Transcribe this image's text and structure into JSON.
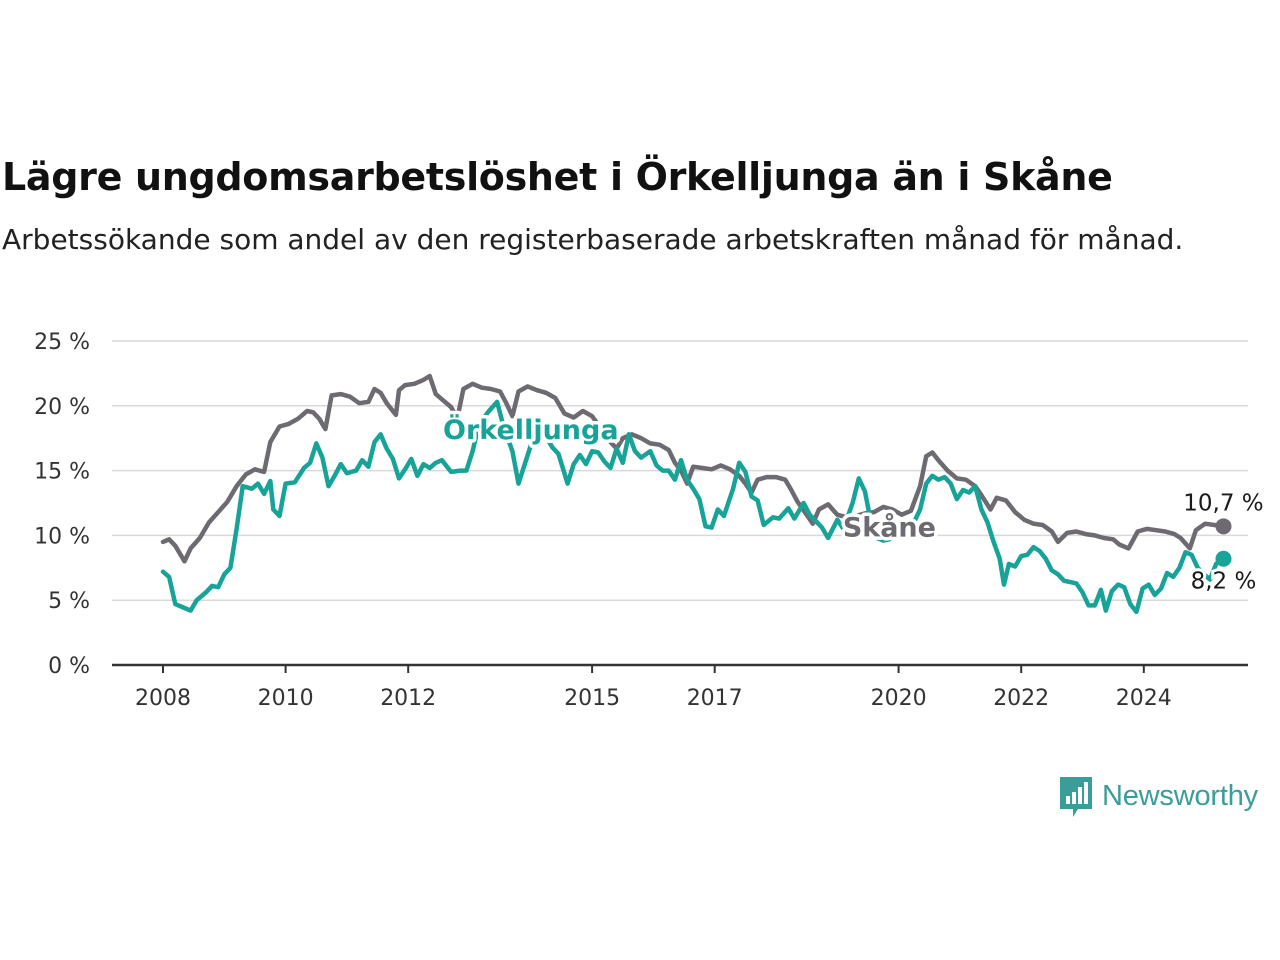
{
  "title": "Lägre ungdomsarbetslöshet i Örkelljunga än i Skåne",
  "subtitle": "Arbetssökande som andel av den registerbaserade arbetskraften månad för månad.",
  "brand": {
    "name": "Newsworthy",
    "icon": "newsworthy-logo-icon",
    "color": "#3a9d97"
  },
  "chart_data": {
    "type": "line",
    "title": "Lägre ungdomsarbetslöshet i Örkelljunga än i Skåne",
    "xlabel": "",
    "ylabel": "",
    "ylim": [
      0,
      25
    ],
    "yticks": [
      0,
      5,
      10,
      15,
      20,
      25
    ],
    "ytick_labels": [
      "0 %",
      "5 %",
      "10 %",
      "15 %",
      "20 %",
      "25 %"
    ],
    "xlim": [
      2008.0,
      2026.5
    ],
    "xticks": [
      2008,
      2010,
      2012,
      2015,
      2017,
      2020,
      2022,
      2024
    ],
    "xtick_labels": [
      "2008",
      "2010",
      "2012",
      "2015",
      "2017",
      "2020",
      "2022",
      "2024"
    ],
    "grid": true,
    "series": [
      {
        "name": "Skåne",
        "color": "#6d6b71",
        "end_label": "10,7 %",
        "points": [
          [
            2008.0,
            9.5
          ],
          [
            2008.1,
            9.7
          ],
          [
            2008.2,
            9.2
          ],
          [
            2008.35,
            8.0
          ],
          [
            2008.45,
            9.0
          ],
          [
            2008.6,
            9.8
          ],
          [
            2008.75,
            11.0
          ],
          [
            2008.9,
            11.8
          ],
          [
            2009.05,
            12.6
          ],
          [
            2009.2,
            13.8
          ],
          [
            2009.35,
            14.7
          ],
          [
            2009.5,
            15.1
          ],
          [
            2009.65,
            14.9
          ],
          [
            2009.75,
            17.2
          ],
          [
            2009.9,
            18.4
          ],
          [
            2010.05,
            18.6
          ],
          [
            2010.2,
            19.0
          ],
          [
            2010.35,
            19.6
          ],
          [
            2010.45,
            19.5
          ],
          [
            2010.55,
            19.0
          ],
          [
            2010.65,
            18.2
          ],
          [
            2010.75,
            20.8
          ],
          [
            2010.9,
            20.9
          ],
          [
            2011.05,
            20.7
          ],
          [
            2011.2,
            20.2
          ],
          [
            2011.35,
            20.3
          ],
          [
            2011.45,
            21.3
          ],
          [
            2011.55,
            21.0
          ],
          [
            2011.65,
            20.2
          ],
          [
            2011.8,
            19.3
          ],
          [
            2011.85,
            21.2
          ],
          [
            2011.95,
            21.6
          ],
          [
            2012.1,
            21.7
          ],
          [
            2012.25,
            22.0
          ],
          [
            2012.35,
            22.3
          ],
          [
            2012.45,
            20.9
          ],
          [
            2012.55,
            20.5
          ],
          [
            2012.7,
            19.9
          ],
          [
            2012.8,
            19.0
          ],
          [
            2012.9,
            21.3
          ],
          [
            2013.05,
            21.7
          ],
          [
            2013.2,
            21.4
          ],
          [
            2013.35,
            21.3
          ],
          [
            2013.5,
            21.1
          ],
          [
            2013.6,
            20.2
          ],
          [
            2013.7,
            19.2
          ],
          [
            2013.8,
            21.1
          ],
          [
            2013.95,
            21.5
          ],
          [
            2014.1,
            21.2
          ],
          [
            2014.25,
            21.0
          ],
          [
            2014.4,
            20.6
          ],
          [
            2014.55,
            19.4
          ],
          [
            2014.7,
            19.1
          ],
          [
            2014.85,
            19.6
          ],
          [
            2015.0,
            19.2
          ],
          [
            2015.15,
            18.2
          ],
          [
            2015.3,
            17.2
          ],
          [
            2015.4,
            16.7
          ],
          [
            2015.5,
            17.5
          ],
          [
            2015.65,
            17.8
          ],
          [
            2015.8,
            17.5
          ],
          [
            2015.95,
            17.1
          ],
          [
            2016.1,
            17.0
          ],
          [
            2016.25,
            16.6
          ],
          [
            2016.35,
            15.6
          ],
          [
            2016.45,
            15.0
          ],
          [
            2016.55,
            14.0
          ],
          [
            2016.65,
            15.3
          ],
          [
            2016.8,
            15.2
          ],
          [
            2016.95,
            15.1
          ],
          [
            2017.1,
            15.4
          ],
          [
            2017.25,
            15.1
          ],
          [
            2017.4,
            14.6
          ],
          [
            2017.5,
            14.0
          ],
          [
            2017.6,
            13.3
          ],
          [
            2017.7,
            14.3
          ],
          [
            2017.85,
            14.5
          ],
          [
            2018.0,
            14.5
          ],
          [
            2018.15,
            14.3
          ],
          [
            2018.25,
            13.5
          ],
          [
            2018.35,
            12.6
          ],
          [
            2018.5,
            11.6
          ],
          [
            2018.6,
            10.9
          ],
          [
            2018.7,
            12.0
          ],
          [
            2018.85,
            12.4
          ],
          [
            2019.0,
            11.6
          ],
          [
            2019.15,
            11.4
          ],
          [
            2019.3,
            11.5
          ],
          [
            2019.45,
            11.7
          ],
          [
            2019.6,
            11.8
          ],
          [
            2019.75,
            12.2
          ],
          [
            2019.9,
            12.0
          ],
          [
            2020.05,
            11.6
          ],
          [
            2020.2,
            11.9
          ],
          [
            2020.35,
            13.8
          ],
          [
            2020.45,
            16.1
          ],
          [
            2020.55,
            16.4
          ],
          [
            2020.65,
            15.8
          ],
          [
            2020.8,
            15.0
          ],
          [
            2020.95,
            14.4
          ],
          [
            2021.1,
            14.3
          ],
          [
            2021.25,
            13.8
          ],
          [
            2021.35,
            13.1
          ],
          [
            2021.5,
            12.0
          ],
          [
            2021.6,
            12.9
          ],
          [
            2021.75,
            12.7
          ],
          [
            2021.9,
            11.8
          ],
          [
            2022.05,
            11.2
          ],
          [
            2022.2,
            10.9
          ],
          [
            2022.35,
            10.8
          ],
          [
            2022.5,
            10.3
          ],
          [
            2022.6,
            9.5
          ],
          [
            2022.75,
            10.2
          ],
          [
            2022.9,
            10.3
          ],
          [
            2023.05,
            10.1
          ],
          [
            2023.2,
            10.0
          ],
          [
            2023.35,
            9.8
          ],
          [
            2023.5,
            9.7
          ],
          [
            2023.6,
            9.3
          ],
          [
            2023.75,
            9.0
          ],
          [
            2023.9,
            10.3
          ],
          [
            2024.05,
            10.5
          ],
          [
            2024.2,
            10.4
          ],
          [
            2024.35,
            10.3
          ],
          [
            2024.5,
            10.1
          ],
          [
            2024.6,
            9.8
          ],
          [
            2024.75,
            9.0
          ],
          [
            2024.85,
            10.4
          ],
          [
            2025.0,
            10.9
          ],
          [
            2025.15,
            10.8
          ],
          [
            2025.3,
            10.7
          ]
        ]
      },
      {
        "name": "Örkelljunga",
        "color": "#17a398",
        "end_label": "8,2 %",
        "points": [
          [
            2008.0,
            7.2
          ],
          [
            2008.1,
            6.8
          ],
          [
            2008.2,
            4.7
          ],
          [
            2008.35,
            4.4
          ],
          [
            2008.45,
            4.2
          ],
          [
            2008.55,
            5.0
          ],
          [
            2008.7,
            5.6
          ],
          [
            2008.8,
            6.1
          ],
          [
            2008.9,
            6.0
          ],
          [
            2009.0,
            7.0
          ],
          [
            2009.1,
            7.5
          ],
          [
            2009.2,
            10.5
          ],
          [
            2009.3,
            13.8
          ],
          [
            2009.45,
            13.6
          ],
          [
            2009.55,
            14.0
          ],
          [
            2009.65,
            13.2
          ],
          [
            2009.75,
            14.2
          ],
          [
            2009.8,
            12.0
          ],
          [
            2009.9,
            11.5
          ],
          [
            2010.0,
            14.0
          ],
          [
            2010.15,
            14.1
          ],
          [
            2010.3,
            15.2
          ],
          [
            2010.4,
            15.6
          ],
          [
            2010.5,
            17.1
          ],
          [
            2010.6,
            16.0
          ],
          [
            2010.7,
            13.8
          ],
          [
            2010.8,
            14.6
          ],
          [
            2010.9,
            15.5
          ],
          [
            2011.0,
            14.8
          ],
          [
            2011.15,
            15.0
          ],
          [
            2011.25,
            15.8
          ],
          [
            2011.35,
            15.3
          ],
          [
            2011.45,
            17.2
          ],
          [
            2011.55,
            17.8
          ],
          [
            2011.65,
            16.7
          ],
          [
            2011.75,
            15.9
          ],
          [
            2011.85,
            14.4
          ],
          [
            2011.95,
            15.1
          ],
          [
            2012.05,
            15.9
          ],
          [
            2012.15,
            14.6
          ],
          [
            2012.25,
            15.5
          ],
          [
            2012.35,
            15.2
          ],
          [
            2012.45,
            15.6
          ],
          [
            2012.55,
            15.8
          ],
          [
            2012.7,
            14.9
          ],
          [
            2012.85,
            15.0
          ],
          [
            2012.95,
            15.0
          ],
          [
            2013.05,
            16.5
          ],
          [
            2013.15,
            18.5
          ],
          [
            2013.3,
            19.5
          ],
          [
            2013.45,
            20.3
          ],
          [
            2013.55,
            18.5
          ],
          [
            2013.7,
            16.5
          ],
          [
            2013.8,
            14.0
          ],
          [
            2013.95,
            16.2
          ],
          [
            2014.1,
            18.4
          ],
          [
            2014.2,
            18.0
          ],
          [
            2014.35,
            16.8
          ],
          [
            2014.45,
            16.3
          ],
          [
            2014.6,
            14.0
          ],
          [
            2014.7,
            15.5
          ],
          [
            2014.8,
            16.2
          ],
          [
            2014.9,
            15.5
          ],
          [
            2015.0,
            16.5
          ],
          [
            2015.1,
            16.4
          ],
          [
            2015.2,
            15.7
          ],
          [
            2015.3,
            15.2
          ],
          [
            2015.4,
            16.7
          ],
          [
            2015.5,
            15.6
          ],
          [
            2015.6,
            17.8
          ],
          [
            2015.7,
            16.5
          ],
          [
            2015.8,
            16.0
          ],
          [
            2015.95,
            16.5
          ],
          [
            2016.05,
            15.4
          ],
          [
            2016.15,
            15.0
          ],
          [
            2016.25,
            15.0
          ],
          [
            2016.35,
            14.3
          ],
          [
            2016.45,
            15.8
          ],
          [
            2016.55,
            14.3
          ],
          [
            2016.65,
            13.6
          ],
          [
            2016.75,
            12.8
          ],
          [
            2016.85,
            10.7
          ],
          [
            2016.95,
            10.6
          ],
          [
            2017.05,
            12.0
          ],
          [
            2017.15,
            11.5
          ],
          [
            2017.3,
            13.6
          ],
          [
            2017.4,
            15.6
          ],
          [
            2017.5,
            14.9
          ],
          [
            2017.6,
            13.0
          ],
          [
            2017.7,
            12.7
          ],
          [
            2017.8,
            10.8
          ],
          [
            2017.95,
            11.4
          ],
          [
            2018.05,
            11.3
          ],
          [
            2018.2,
            12.1
          ],
          [
            2018.3,
            11.3
          ],
          [
            2018.45,
            12.5
          ],
          [
            2018.55,
            11.6
          ],
          [
            2018.65,
            11.1
          ],
          [
            2018.75,
            10.6
          ],
          [
            2018.85,
            9.8
          ],
          [
            2019.0,
            11.2
          ],
          [
            2019.1,
            10.5
          ],
          [
            2019.25,
            12.5
          ],
          [
            2019.35,
            14.4
          ],
          [
            2019.45,
            13.4
          ],
          [
            2019.55,
            11.0
          ],
          [
            2019.65,
            9.8
          ],
          [
            2019.75,
            9.6
          ],
          [
            2019.85,
            9.7
          ],
          [
            2019.95,
            10.9
          ],
          [
            2020.05,
            10.7
          ],
          [
            2020.15,
            10.8
          ],
          [
            2020.25,
            11.0
          ],
          [
            2020.35,
            12.0
          ],
          [
            2020.45,
            14.0
          ],
          [
            2020.55,
            14.6
          ],
          [
            2020.65,
            14.3
          ],
          [
            2020.75,
            14.5
          ],
          [
            2020.85,
            14.0
          ],
          [
            2020.95,
            12.8
          ],
          [
            2021.05,
            13.5
          ],
          [
            2021.15,
            13.3
          ],
          [
            2021.25,
            13.8
          ],
          [
            2021.35,
            12.0
          ],
          [
            2021.45,
            11.0
          ],
          [
            2021.55,
            9.5
          ],
          [
            2021.65,
            8.2
          ],
          [
            2021.72,
            6.2
          ],
          [
            2021.8,
            7.8
          ],
          [
            2021.9,
            7.6
          ],
          [
            2022.0,
            8.4
          ],
          [
            2022.1,
            8.5
          ],
          [
            2022.2,
            9.1
          ],
          [
            2022.3,
            8.8
          ],
          [
            2022.4,
            8.2
          ],
          [
            2022.5,
            7.3
          ],
          [
            2022.6,
            7.0
          ],
          [
            2022.7,
            6.5
          ],
          [
            2022.8,
            6.4
          ],
          [
            2022.9,
            6.3
          ],
          [
            2023.0,
            5.6
          ],
          [
            2023.1,
            4.6
          ],
          [
            2023.2,
            4.6
          ],
          [
            2023.3,
            5.8
          ],
          [
            2023.38,
            4.2
          ],
          [
            2023.48,
            5.7
          ],
          [
            2023.58,
            6.2
          ],
          [
            2023.68,
            6.0
          ],
          [
            2023.78,
            4.7
          ],
          [
            2023.88,
            4.1
          ],
          [
            2023.98,
            5.9
          ],
          [
            2024.08,
            6.2
          ],
          [
            2024.18,
            5.4
          ],
          [
            2024.28,
            5.9
          ],
          [
            2024.38,
            7.1
          ],
          [
            2024.48,
            6.8
          ],
          [
            2024.58,
            7.5
          ],
          [
            2024.68,
            8.7
          ],
          [
            2024.78,
            8.5
          ],
          [
            2024.88,
            7.5
          ],
          [
            2024.98,
            7.0
          ],
          [
            2025.08,
            6.6
          ],
          [
            2025.18,
            7.8
          ],
          [
            2025.3,
            8.2
          ]
        ]
      }
    ],
    "labels": [
      {
        "text": "Örkelljunga",
        "series": "Örkelljunga",
        "x": 2014.0,
        "y": 18.2
      },
      {
        "text": "Skåne",
        "series": "Skåne",
        "x": 2019.85,
        "y": 10.7
      }
    ]
  }
}
